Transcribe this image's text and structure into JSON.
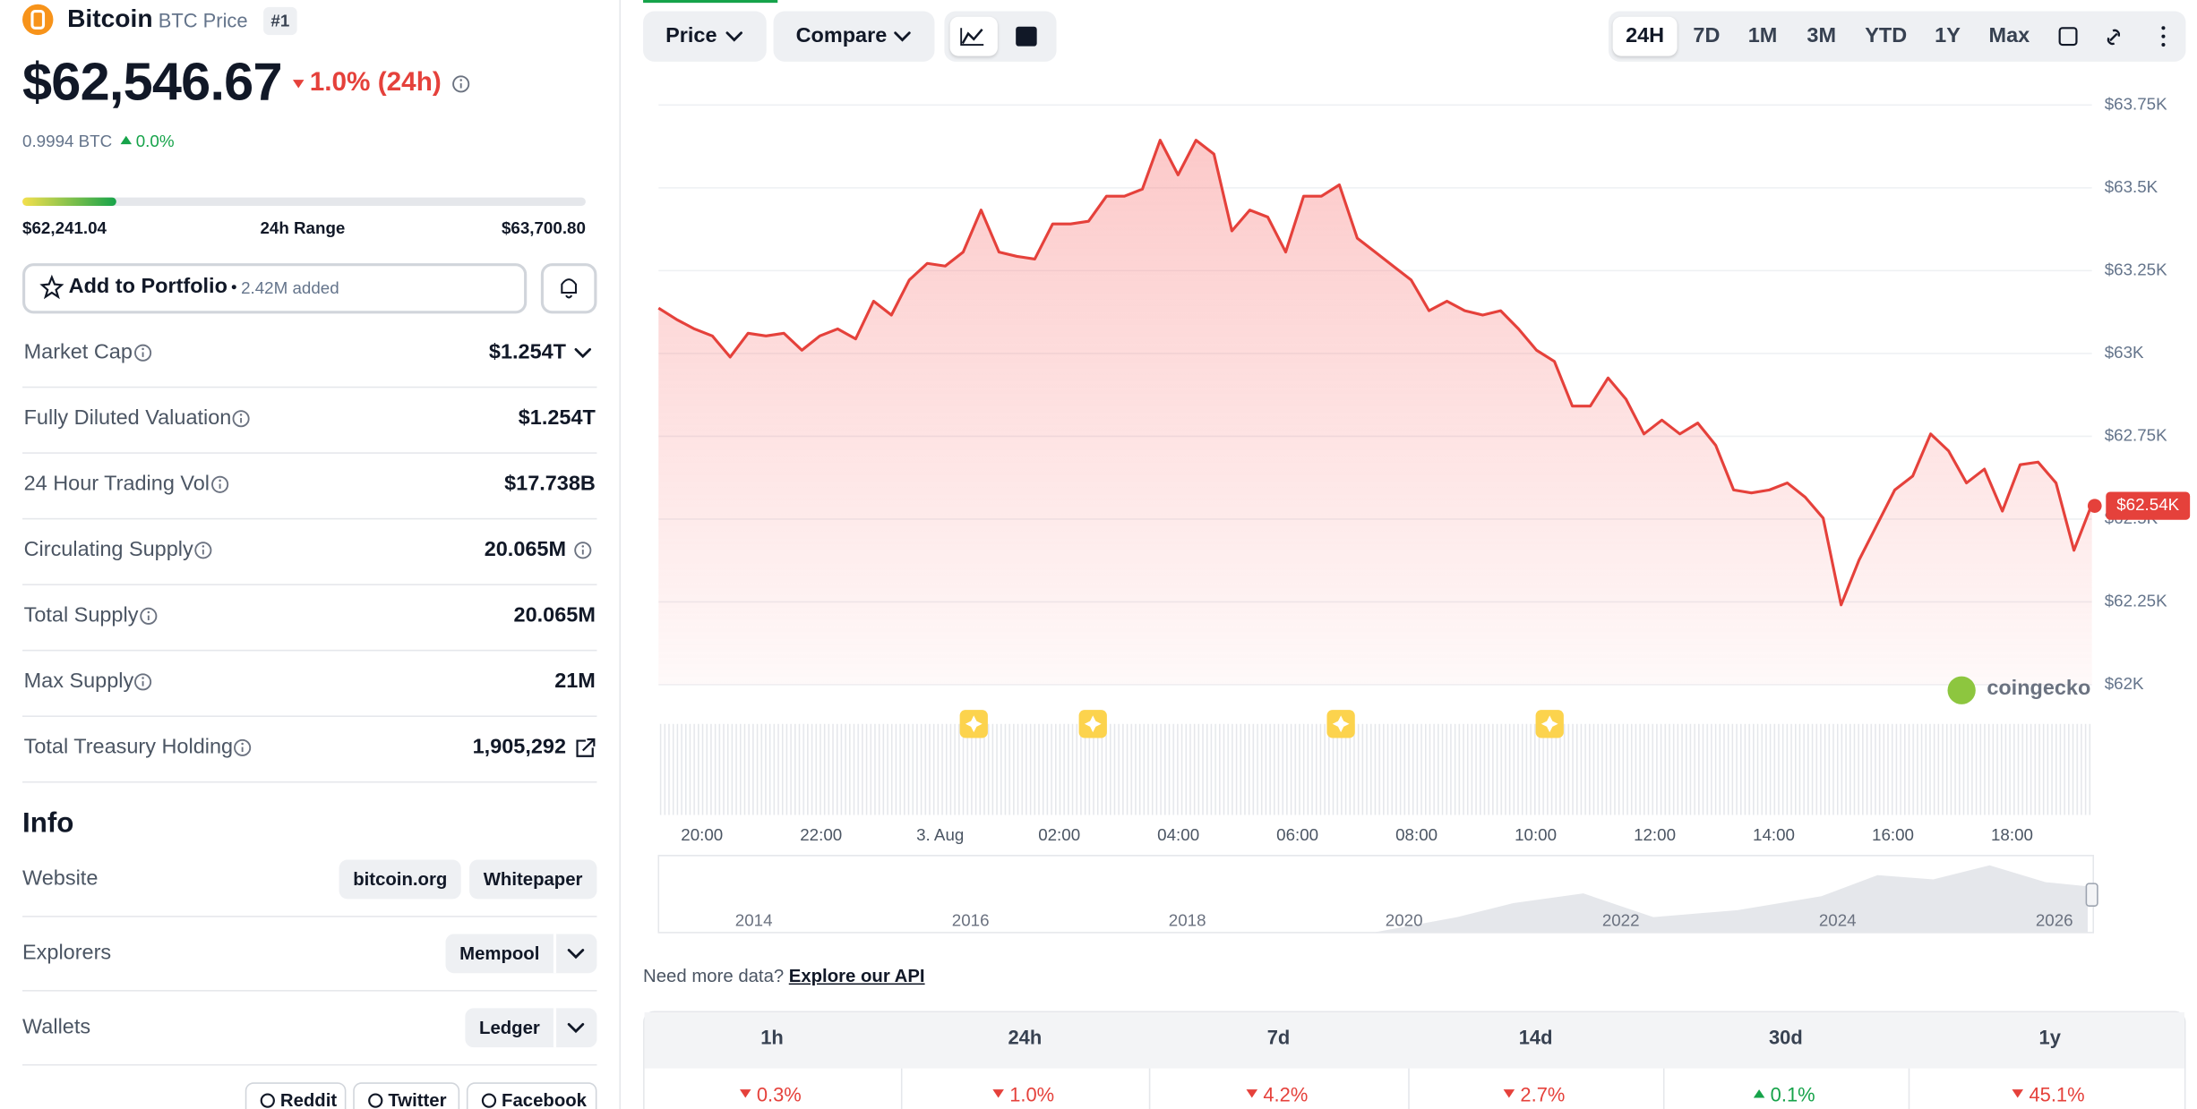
{
  "coin": {
    "name": "Bitcoin",
    "subtitle": "BTC Price",
    "rank": "#1",
    "price": "$62,546.67",
    "change_24h": "1.0% (24h)",
    "change_24h_direction": "down",
    "btc_price": "0.9994 BTC",
    "btc_change": "0.0%",
    "btc_change_direction": "up"
  },
  "range": {
    "low": "$62,241.04",
    "label": "24h Range",
    "high": "$63,700.80"
  },
  "portfolio": {
    "button": "Add to Portfolio",
    "added": "2.42M added"
  },
  "stats": [
    {
      "label": "Market Cap",
      "value": "$1.254T"
    },
    {
      "label": "Fully Diluted Valuation",
      "value": "$1.254T"
    },
    {
      "label": "24 Hour Trading Vol",
      "value": "$17.738B"
    },
    {
      "label": "Circulating Supply",
      "value": "20.065M"
    },
    {
      "label": "Total Supply",
      "value": "20.065M"
    },
    {
      "label": "Max Supply",
      "value": "21M"
    },
    {
      "label": "Total Treasury Holding",
      "value": "1,905,292"
    }
  ],
  "info": {
    "title": "Info",
    "rows": [
      {
        "label": "Website",
        "links": [
          "bitcoin.org",
          "Whitepaper"
        ]
      },
      {
        "label": "Explorers",
        "links": [
          "Mempool"
        ]
      },
      {
        "label": "Wallets",
        "links": [
          "Ledger"
        ]
      }
    ],
    "social": [
      "Reddit",
      "Twitter",
      "Facebook"
    ]
  },
  "toolbar": {
    "price": "Price",
    "compare": "Compare",
    "ranges": [
      "24H",
      "7D",
      "1M",
      "3M",
      "YTD",
      "1Y",
      "Max"
    ],
    "selected_range": "24H"
  },
  "price_chart": {
    "type": "line",
    "series": [
      {
        "color": "#e5413b",
        "values": [
          63137,
          63103,
          63074,
          63053,
          62989,
          63061,
          63053,
          63061,
          63010,
          63053,
          63074,
          63044,
          63158,
          63116,
          63222,
          63272,
          63264,
          63306,
          63433,
          63306,
          63293,
          63285,
          63391,
          63391,
          63399,
          63475,
          63475,
          63496,
          63644,
          63539,
          63644,
          63602,
          63370,
          63433,
          63412,
          63306,
          63475,
          63475,
          63509,
          63348,
          63306,
          63264,
          63222,
          63129,
          63158,
          63129,
          63116,
          63129,
          63074,
          63010,
          62976,
          62841,
          62841,
          62926,
          62862,
          62757,
          62799,
          62757,
          62790,
          62723,
          62588,
          62579,
          62588,
          62609,
          62566,
          62503,
          62241,
          62376,
          62482,
          62588,
          62630,
          62757,
          62706,
          62609,
          62651,
          62524,
          62664,
          62672,
          62609,
          62406,
          62545
        ]
      }
    ],
    "ylim": [
      62000,
      63750
    ],
    "yticks": [
      {
        "value": 62000,
        "label": "$62K"
      },
      {
        "value": 62250,
        "label": "$62.25K"
      },
      {
        "value": 62500,
        "label": "$62.5K"
      },
      {
        "value": 62750,
        "label": "$62.75K"
      },
      {
        "value": 63000,
        "label": "$63K"
      },
      {
        "value": 63250,
        "label": "$63.25K"
      },
      {
        "value": 63500,
        "label": "$63.5K"
      },
      {
        "value": 63750,
        "label": "$63.75K"
      }
    ],
    "grid": true,
    "xtick_labels": [
      "20:00",
      "22:00",
      "3. Aug",
      "02:00",
      "04:00",
      "06:00",
      "08:00",
      "10:00",
      "12:00",
      "14:00",
      "16:00",
      "18:00"
    ],
    "current_price": {
      "value": 62540,
      "label": "$62.54K"
    },
    "navigator_years": [
      "2014",
      "2016",
      "2018",
      "2020",
      "2022",
      "2024",
      "2026"
    ],
    "watermark": "coingecko"
  },
  "api": {
    "text": "Need more data?",
    "link": "Explore our API"
  },
  "performance": [
    {
      "period": "1h",
      "change": "0.3%",
      "direction": "down"
    },
    {
      "period": "24h",
      "change": "1.0%",
      "direction": "down"
    },
    {
      "period": "7d",
      "change": "4.2%",
      "direction": "down"
    },
    {
      "period": "14d",
      "change": "2.7%",
      "direction": "down"
    },
    {
      "period": "30d",
      "change": "0.1%",
      "direction": "up"
    },
    {
      "period": "1y",
      "change": "45.1%",
      "direction": "down"
    }
  ]
}
